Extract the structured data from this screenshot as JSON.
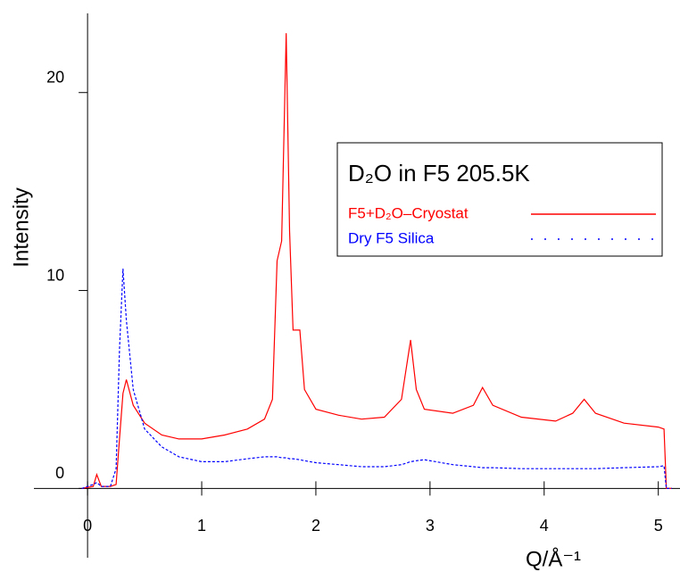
{
  "chart_data": {
    "type": "line",
    "title": "D₂O in F5 205.5K",
    "x_label": "Q/Å⁻¹",
    "y_label": "Intensity",
    "xlim": [
      -0.47,
      5.19
    ],
    "ylim": [
      -3.5,
      24
    ],
    "xticks": [
      0,
      1,
      2,
      3,
      4,
      5
    ],
    "yticks": [
      0,
      10,
      20
    ],
    "x": [
      -0.05,
      0.05,
      0.08,
      0.12,
      0.2,
      0.25,
      0.28,
      0.31,
      0.34,
      0.4,
      0.5,
      0.65,
      0.8,
      1.0,
      1.2,
      1.4,
      1.55,
      1.62,
      1.66,
      1.7,
      1.74,
      1.77,
      1.8,
      1.86,
      1.9,
      2.0,
      2.2,
      2.4,
      2.6,
      2.75,
      2.83,
      2.88,
      2.95,
      3.2,
      3.38,
      3.46,
      3.55,
      3.8,
      4.1,
      4.25,
      4.35,
      4.45,
      4.7,
      5.0,
      5.05,
      5.07,
      5.12
    ],
    "series": [
      {
        "name": "F5+D₂O–Cryostat",
        "color": "#ff0000",
        "dashed": false,
        "values": [
          0,
          0.1,
          0.7,
          0.1,
          0.1,
          0.2,
          2.5,
          4.8,
          5.5,
          4.2,
          3.3,
          2.7,
          2.5,
          2.5,
          2.7,
          3.0,
          3.5,
          4.5,
          11.5,
          12.5,
          23,
          13,
          8,
          8,
          5,
          4,
          3.7,
          3.5,
          3.6,
          4.5,
          7.5,
          5,
          4,
          3.8,
          4.2,
          5.1,
          4.2,
          3.6,
          3.4,
          3.8,
          4.5,
          3.8,
          3.3,
          3.1,
          3.0,
          0,
          0
        ]
      },
      {
        "name": "Dry F5 Silica",
        "color": "#0000ff",
        "dashed": true,
        "values": [
          0,
          0.2,
          0.3,
          0.1,
          0.1,
          1.0,
          7,
          11.1,
          8.5,
          5,
          3,
          2.1,
          1.6,
          1.35,
          1.35,
          1.5,
          1.6,
          1.6,
          1.6,
          1.55,
          1.55,
          1.5,
          1.5,
          1.45,
          1.4,
          1.3,
          1.2,
          1.1,
          1.1,
          1.2,
          1.35,
          1.4,
          1.45,
          1.2,
          1.1,
          1.05,
          1.05,
          1.0,
          1.0,
          1.0,
          1.0,
          1.0,
          1.05,
          1.1,
          1.15,
          0,
          0
        ]
      }
    ]
  }
}
